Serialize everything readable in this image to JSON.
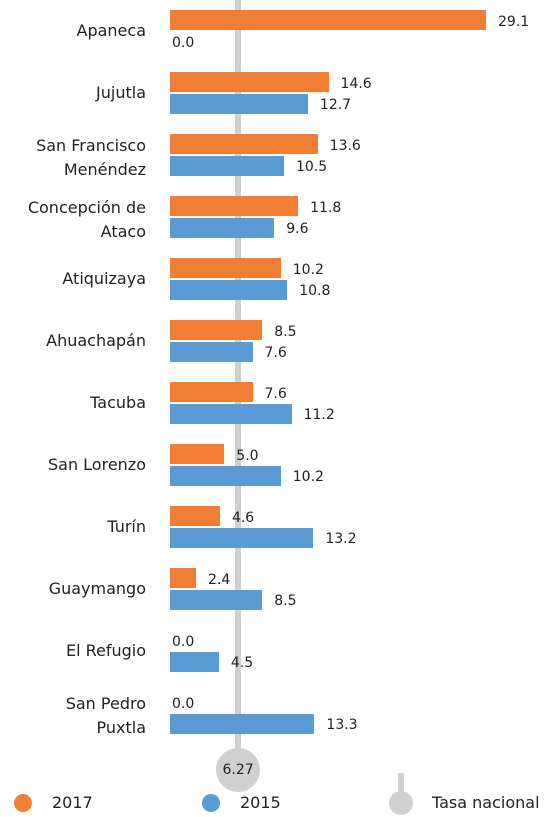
{
  "chart_data": {
    "type": "bar",
    "categories": [
      "Apaneca",
      "Jujutla",
      "San Francisco\nMenéndez",
      "Concepción de\nAtaco",
      "Atiquizaya",
      "Ahuachapán",
      "Tacuba",
      "San Lorenzo",
      "Turín",
      "Guaymango",
      "El Refugio",
      "San Pedro\nPuxtla"
    ],
    "series": [
      {
        "name": "2017",
        "color": "#f07f35",
        "values": [
          29.1,
          14.6,
          13.6,
          11.8,
          10.2,
          8.5,
          7.6,
          5.0,
          4.6,
          2.4,
          0.0,
          0.0
        ],
        "value_labels": [
          "29.1",
          "14.6",
          "13.6",
          "11.8",
          "10.2",
          "8.5",
          "7.6",
          "5.0",
          "4.6",
          "2.4",
          "0.0",
          "0.0"
        ]
      },
      {
        "name": "2015",
        "color": "#5b9bd5",
        "values": [
          0.0,
          12.7,
          10.5,
          9.6,
          10.8,
          7.6,
          11.2,
          10.2,
          13.2,
          8.5,
          4.5,
          13.3
        ],
        "value_labels": [
          "0.0",
          "12.7",
          "10.5",
          "9.6",
          "10.8",
          "7.6",
          "11.2",
          "10.2",
          "13.2",
          "8.5",
          "4.5",
          "13.3"
        ]
      }
    ],
    "reference": {
      "name": "Tasa nacional",
      "value": 6.27,
      "color": "#d0d0d0"
    },
    "xlim": [
      0,
      29.1
    ]
  }
}
